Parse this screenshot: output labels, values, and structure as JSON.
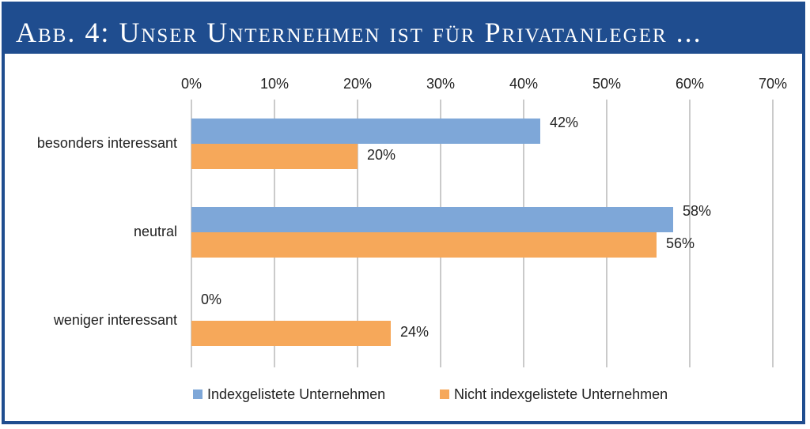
{
  "header": {
    "title": "Abb. 4: Unser Unternehmen ist für Privatanleger ..."
  },
  "colors": {
    "frame": "#1f4d8f",
    "series_indexed": "#7ea7d8",
    "series_not_indexed": "#f6a85a",
    "grid": "#a8a8a8"
  },
  "chart_data": {
    "type": "bar",
    "orientation": "horizontal",
    "title": "",
    "xlabel": "",
    "ylabel": "",
    "xlim": [
      0,
      70
    ],
    "x_ticks": [
      "0%",
      "10%",
      "20%",
      "30%",
      "40%",
      "50%",
      "60%",
      "70%"
    ],
    "x_tick_values": [
      0,
      10,
      20,
      30,
      40,
      50,
      60,
      70
    ],
    "grid": true,
    "categories": [
      "besonders interessant",
      "neutral",
      "weniger interessant"
    ],
    "series": [
      {
        "name": "Indexgelistete Unternehmen",
        "values": [
          42,
          58,
          0
        ],
        "labels": [
          "42%",
          "58%",
          "0%"
        ]
      },
      {
        "name": "Nicht indexgelistete Unternehmen",
        "values": [
          20,
          56,
          24
        ],
        "labels": [
          "20%",
          "56%",
          "24%"
        ]
      }
    ],
    "legend_position": "bottom"
  }
}
